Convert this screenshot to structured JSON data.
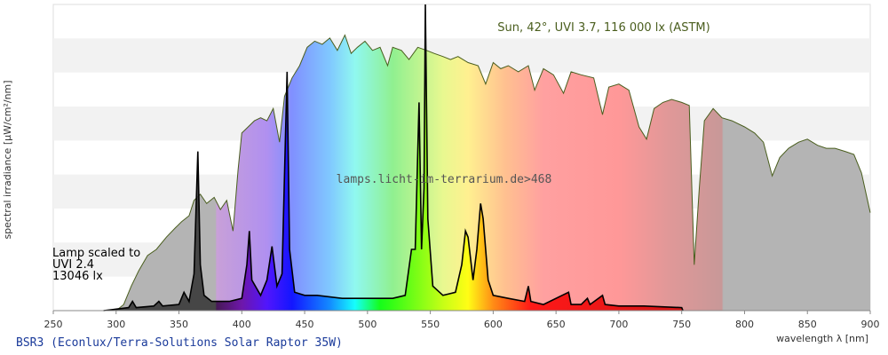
{
  "chart_data": {
    "type": "line",
    "title": "Sun, 42°, UVI 3.7, 116 000 lx (ASTM)",
    "watermark": "lamps.licht-im-terrarium.de>468",
    "x_label": "wavelength λ [nm]",
    "y_label": "spectral irradiance [µW/cm²/nm]",
    "annotations": [
      "Lamp scaled to",
      "UVI 2.4",
      "13046 lx"
    ],
    "xlim": [
      250,
      900
    ],
    "xticks": [
      250,
      300,
      350,
      400,
      450,
      500,
      550,
      600,
      650,
      700,
      750,
      800,
      850,
      900
    ],
    "ylim": [
      0,
      100
    ],
    "series": [
      {
        "name": "Sun, 42°, UVI 3.7, 116 000 lx (ASTM)",
        "color": "#4a5e1e",
        "x": [
          300,
          306,
          312,
          318,
          325,
          332,
          340,
          347,
          352,
          358,
          362,
          367,
          372,
          378,
          383,
          388,
          393,
          397,
          400,
          405,
          410,
          415,
          420,
          425,
          430,
          434,
          440,
          446,
          452,
          458,
          464,
          470,
          476,
          482,
          487,
          492,
          498,
          504,
          510,
          516,
          520,
          527,
          533,
          540,
          547,
          553,
          560,
          566,
          572,
          580,
          588,
          594,
          600,
          606,
          612,
          620,
          628,
          633,
          640,
          648,
          656,
          662,
          670,
          680,
          687,
          692,
          700,
          708,
          716,
          722,
          728,
          735,
          742,
          750,
          756,
          760,
          764,
          768,
          775,
          782,
          790,
          800,
          808,
          815,
          822,
          828,
          835,
          843,
          850,
          858,
          865,
          872,
          880,
          887,
          893,
          900
        ],
        "values": [
          0,
          2,
          8,
          13,
          18,
          20,
          24,
          27,
          29,
          31,
          36,
          38,
          35,
          37,
          33,
          36,
          26,
          46,
          58,
          60,
          62,
          63,
          62,
          66,
          55,
          70,
          76,
          80,
          86,
          88,
          87,
          89,
          85,
          90,
          84,
          86,
          88,
          85,
          86,
          80,
          86,
          85,
          82,
          86,
          85,
          84,
          83,
          82,
          83,
          81,
          80,
          74,
          81,
          79,
          80,
          78,
          80,
          72,
          79,
          77,
          71,
          78,
          77,
          76,
          64,
          73,
          74,
          72,
          60,
          56,
          66,
          68,
          69,
          68,
          67,
          15,
          40,
          62,
          66,
          63,
          62,
          60,
          58,
          55,
          44,
          50,
          53,
          55,
          56,
          54,
          53,
          53,
          52,
          51,
          45,
          32
        ]
      },
      {
        "name": "BSR3 (Econlux/Terra-Solutions Solar Raptor 35W)",
        "color": "#000000",
        "x": [
          290,
          300,
          310,
          313,
          316,
          330,
          334,
          337,
          350,
          354,
          358,
          362,
          365,
          367,
          370,
          376,
          382,
          390,
          400,
          404,
          406,
          408,
          415,
          420,
          424,
          428,
          432,
          436,
          438,
          442,
          450,
          460,
          480,
          500,
          520,
          530,
          535,
          538,
          541,
          543,
          545,
          546,
          548,
          552,
          560,
          570,
          575,
          578,
          580,
          584,
          587,
          590,
          592,
          596,
          600,
          612,
          625,
          628,
          630,
          640,
          660,
          662,
          670,
          675,
          677,
          687,
          689,
          700,
          720,
          750,
          751
        ],
        "values": [
          0,
          0.5,
          1,
          3,
          1,
          1.5,
          3,
          1.5,
          2,
          6,
          3,
          12,
          52,
          15,
          5,
          3,
          3,
          3,
          4,
          15,
          26,
          10,
          5,
          10,
          21,
          8,
          12,
          78,
          20,
          6,
          5,
          5,
          4,
          4,
          4,
          5,
          20,
          20,
          68,
          20,
          40,
          100,
          30,
          8,
          5,
          6,
          15,
          26,
          24,
          10,
          20,
          35,
          30,
          10,
          5,
          4,
          3,
          8,
          3,
          2,
          6,
          2,
          2,
          4,
          2,
          5,
          2,
          1.5,
          1.5,
          1,
          0
        ]
      }
    ]
  }
}
